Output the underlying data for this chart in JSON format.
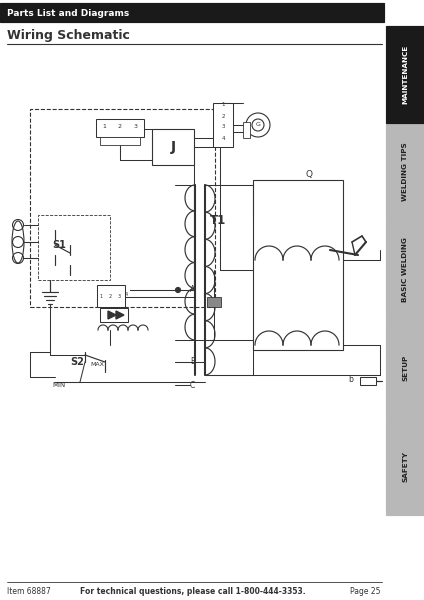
{
  "bg_color": "#ffffff",
  "lc": "#333333",
  "title_bar_color": "#1a1a1a",
  "title_bar_text": "Parts List and Diagrams",
  "title_bar_text_color": "#ffffff",
  "subtitle": "Wiring Schematic",
  "footer_left": "Item 68887",
  "footer_center": "For technical questions, please call 1-800-444-3353.",
  "footer_right": "Page 25",
  "tab_labels": [
    "SAFETY",
    "SETUP",
    "BASIC WELDING",
    "WELDING TIPS",
    "MAINTENANCE"
  ],
  "tab_colors": [
    "#b8b8b8",
    "#b8b8b8",
    "#b8b8b8",
    "#b8b8b8",
    "#1a1a1a"
  ],
  "tab_text_colors": [
    "#222222",
    "#222222",
    "#222222",
    "#222222",
    "#ffffff"
  ]
}
